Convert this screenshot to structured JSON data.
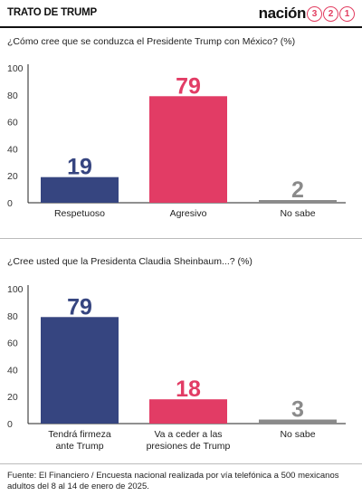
{
  "header": {
    "title": "TRATO DE TRUMP",
    "brand_word": "nación",
    "brand_digits": [
      "3",
      "2",
      "1"
    ]
  },
  "colors": {
    "blue": "#364580",
    "pink": "#e23c65",
    "gray": "#8a8a8a"
  },
  "chart_data": [
    {
      "type": "bar",
      "title": "¿Cómo cree que se conduzca el Presidente Trump con México? (%)",
      "categories": [
        "Respetuoso",
        "Agresivo",
        "No sabe"
      ],
      "values": [
        19,
        79,
        2
      ],
      "bar_colors": [
        "#364580",
        "#e23c65",
        "#8a8a8a"
      ],
      "ylim": [
        0,
        100
      ],
      "yticks": [
        0,
        20,
        40,
        60,
        80,
        100
      ],
      "grid": false,
      "xlabel": "",
      "ylabel": ""
    },
    {
      "type": "bar",
      "title": "¿Cree usted que la Presidenta Claudia Sheinbaum...? (%)",
      "categories": [
        [
          "Tendrá firmeza",
          "ante Trump"
        ],
        [
          "Va a ceder a las",
          "presiones de Trump"
        ],
        [
          "No sabe"
        ]
      ],
      "values": [
        79,
        18,
        3
      ],
      "bar_colors": [
        "#364580",
        "#e23c65",
        "#8a8a8a"
      ],
      "ylim": [
        0,
        100
      ],
      "yticks": [
        0,
        20,
        40,
        60,
        80,
        100
      ],
      "grid": false,
      "xlabel": "",
      "ylabel": ""
    }
  ],
  "source": "Fuente: El Financiero / Encuesta nacional realizada por vía telefónica a 500 mexicanos adultos del 8 al 14 de enero de 2025."
}
